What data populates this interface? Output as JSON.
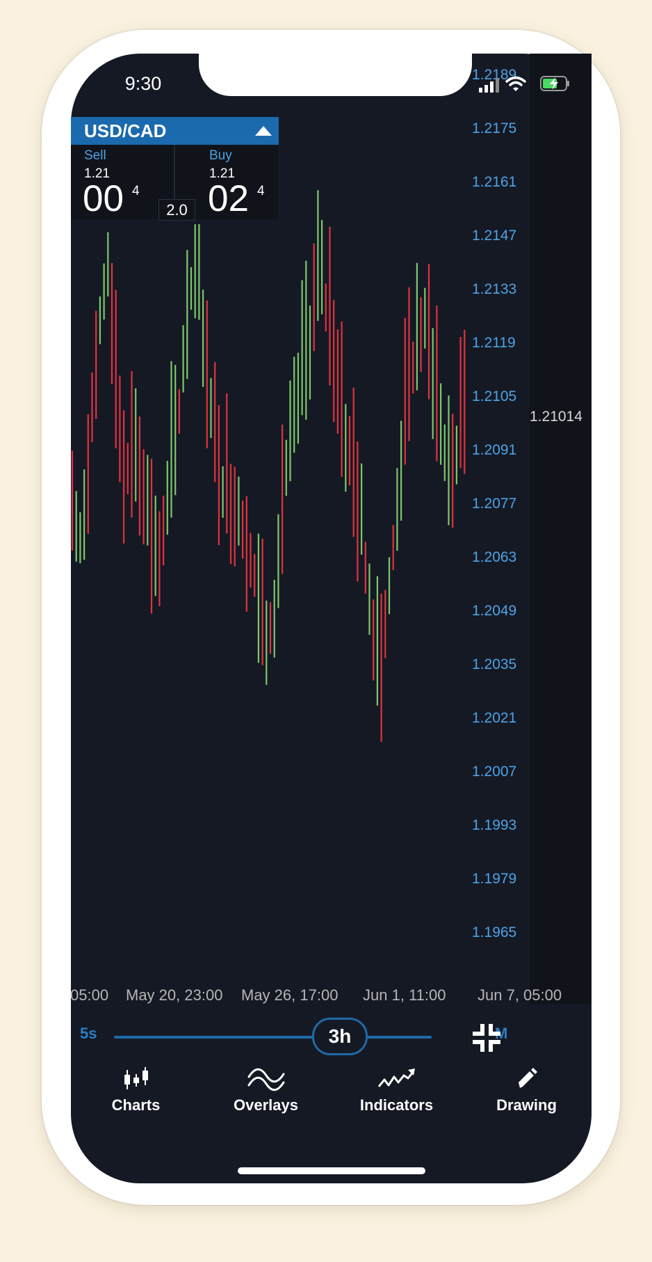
{
  "status": {
    "time": "9:30"
  },
  "ticket": {
    "pair": "USD/CAD",
    "sell": {
      "label": "Sell",
      "prefix": "1.21",
      "big": "00",
      "pip": "4"
    },
    "buy": {
      "label": "Buy",
      "prefix": "1.21",
      "big": "02",
      "pip": "4"
    },
    "spread": "2.0"
  },
  "chart_data": {
    "type": "candlestick",
    "price_axis": [
      "1.2189",
      "1.2175",
      "1.2161",
      "1.2147",
      "1.2133",
      "1.2119",
      "1.2105",
      "1.2091",
      "1.2077",
      "1.2063",
      "1.2049",
      "1.2035",
      "1.2021",
      "1.2007",
      "1.1993",
      "1.1979",
      "1.1965"
    ],
    "current_price": "1.21014",
    "x_labels": [
      "05:00",
      "May 20, 23:00",
      "May 26, 17:00",
      "Jun 1, 11:00",
      "Jun 7, 05:00"
    ],
    "colors": {
      "up": "#7cc86a",
      "down": "#e03340",
      "axis_text": "#4da3e5"
    }
  },
  "slider": {
    "min_label": "5s",
    "max_label": "M",
    "value": "3h"
  },
  "tabs": [
    {
      "label": "Charts",
      "icon": "candles-icon"
    },
    {
      "label": "Overlays",
      "icon": "waves-icon"
    },
    {
      "label": "Indicators",
      "icon": "trend-arrow-icon"
    },
    {
      "label": "Drawing",
      "icon": "pencil-icon"
    }
  ]
}
